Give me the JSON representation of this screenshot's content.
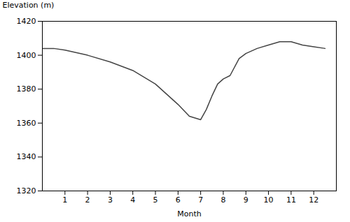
{
  "chart_data": {
    "type": "line",
    "xlabel": "Month",
    "ylabel": "Elevation (m)",
    "x": [
      0,
      0.5,
      1,
      2,
      3,
      4,
      5,
      6,
      6.5,
      7,
      7.25,
      7.5,
      7.75,
      8.0,
      8.3,
      8.7,
      9.0,
      9.5,
      10.0,
      10.5,
      11.0,
      11.5,
      12.0,
      12.5
    ],
    "values": [
      1404,
      1404,
      1403,
      1400,
      1396,
      1391,
      1383,
      1371,
      1364,
      1362,
      1368,
      1376,
      1383,
      1386,
      1388,
      1398,
      1401,
      1404,
      1406,
      1408,
      1408,
      1406,
      1405,
      1404
    ],
    "color": "#444444",
    "xlim": [
      0,
      13
    ],
    "ylim": [
      1320,
      1420
    ],
    "xticks": [
      1,
      2,
      3,
      4,
      5,
      6,
      7,
      8,
      9,
      10,
      11,
      12
    ],
    "yticks": [
      1320,
      1340,
      1360,
      1380,
      1400,
      1420
    ],
    "grid": false
  }
}
